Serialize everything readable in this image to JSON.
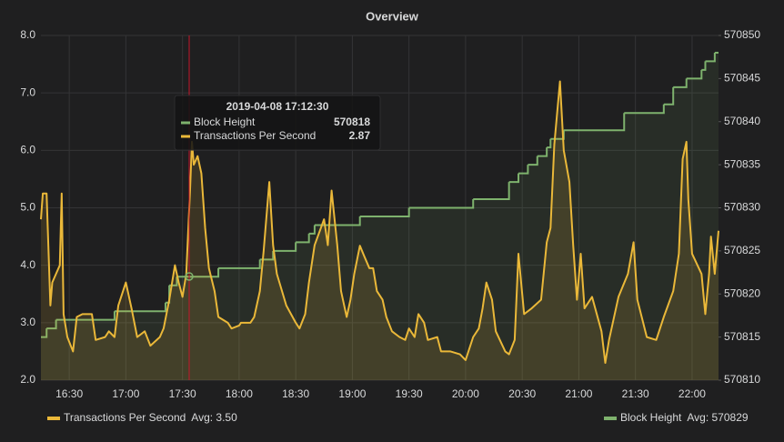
{
  "chart_data": {
    "type": "line",
    "title": "Overview",
    "xlim": [
      "16:15",
      "22:14"
    ],
    "xticks": [
      "16:30",
      "17:00",
      "17:30",
      "18:00",
      "18:30",
      "19:00",
      "19:30",
      "20:00",
      "20:30",
      "21:00",
      "21:30",
      "22:00"
    ],
    "ylim": [
      2,
      8
    ],
    "yticks": [
      {
        "value": 2,
        "label": "2.0"
      },
      {
        "value": 3,
        "label": "3.0"
      },
      {
        "value": 4,
        "label": "4.0"
      },
      {
        "value": 5,
        "label": "5.0"
      },
      {
        "value": 6,
        "label": "6.0"
      },
      {
        "value": 7,
        "label": "7.0"
      },
      {
        "value": 8,
        "label": "8.0"
      }
    ],
    "y2lim": [
      570810,
      570850
    ],
    "y2ticks": [
      570810,
      570815,
      570820,
      570825,
      570830,
      570835,
      570840,
      570845,
      570850
    ],
    "grid": true,
    "series": [
      {
        "name": "Transactions Per Second",
        "color": "#eab839",
        "legend_value": "Avg: 3.50",
        "x": [
          "16:15",
          "16:16",
          "16:18",
          "16:20",
          "16:21",
          "16:23",
          "16:25",
          "16:26",
          "16:27",
          "16:29",
          "16:32",
          "16:34",
          "16:37",
          "16:42",
          "16:44",
          "16:49",
          "16:51",
          "16:54",
          "16:56",
          "17:00",
          "17:03",
          "17:06",
          "17:10",
          "17:13",
          "17:18",
          "17:20",
          "17:23",
          "17:26",
          "17:28",
          "17:30",
          "17:32",
          "17:34",
          "17:35",
          "17:36",
          "17:38",
          "17:40",
          "17:42",
          "17:44",
          "17:47",
          "17:49",
          "17:54",
          "17:56",
          "18:00",
          "18:01",
          "18:06",
          "18:08",
          "18:11",
          "18:13",
          "18:16",
          "18:18",
          "18:20",
          "18:25",
          "18:30",
          "18:32",
          "18:35",
          "18:37",
          "18:40",
          "18:45",
          "18:47",
          "18:49",
          "18:52",
          "18:54",
          "18:57",
          "18:59",
          "19:01",
          "19:04",
          "19:06",
          "19:09",
          "19:11",
          "19:13",
          "19:16",
          "19:18",
          "19:21",
          "19:25",
          "19:28",
          "19:30",
          "19:33",
          "19:35",
          "19:38",
          "19:40",
          "19:45",
          "19:47",
          "19:52",
          "19:57",
          "20:00",
          "20:04",
          "20:07",
          "20:09",
          "20:11",
          "20:14",
          "20:16",
          "20:21",
          "20:23",
          "20:26",
          "20:28",
          "20:31",
          "20:35",
          "20:40",
          "20:43",
          "20:45",
          "20:47",
          "20:50",
          "20:52",
          "20:55",
          "20:57",
          "20:59",
          "21:01",
          "21:03",
          "21:07",
          "21:12",
          "21:14",
          "21:16",
          "21:21",
          "21:26",
          "21:29",
          "21:31",
          "21:36",
          "21:41",
          "21:45",
          "21:50",
          "21:53",
          "21:55",
          "21:57",
          "21:58",
          "22:00",
          "22:05",
          "22:07",
          "22:09",
          "22:10",
          "22:12",
          "22:14"
        ],
        "values": [
          4.8,
          5.25,
          5.25,
          3.3,
          3.7,
          3.85,
          4.0,
          5.25,
          3.15,
          2.75,
          2.5,
          3.1,
          3.15,
          3.15,
          2.7,
          2.75,
          2.85,
          2.75,
          3.3,
          3.7,
          3.25,
          2.75,
          2.85,
          2.6,
          2.75,
          2.9,
          3.4,
          4.0,
          3.7,
          3.45,
          3.85,
          5.3,
          6.15,
          5.75,
          5.9,
          5.6,
          4.65,
          3.95,
          3.55,
          3.1,
          3.0,
          2.9,
          2.95,
          3.0,
          3.0,
          3.1,
          3.55,
          4.25,
          5.45,
          4.35,
          3.85,
          3.3,
          3.0,
          2.9,
          3.15,
          3.7,
          4.35,
          4.8,
          4.35,
          5.3,
          4.35,
          3.55,
          3.1,
          3.4,
          3.85,
          4.34,
          4.18,
          3.95,
          3.95,
          3.55,
          3.4,
          3.1,
          2.85,
          2.75,
          2.7,
          2.9,
          2.75,
          3.15,
          3.0,
          2.7,
          2.75,
          2.5,
          2.5,
          2.45,
          2.35,
          2.75,
          2.9,
          3.25,
          3.7,
          3.4,
          2.85,
          2.5,
          2.45,
          2.7,
          4.2,
          3.15,
          3.25,
          3.4,
          4.4,
          4.65,
          6.1,
          7.2,
          6.0,
          5.45,
          4.35,
          3.4,
          4.2,
          3.25,
          3.45,
          2.85,
          2.3,
          2.7,
          3.45,
          3.85,
          4.4,
          3.4,
          2.75,
          2.7,
          3.1,
          3.55,
          4.2,
          5.85,
          6.15,
          5.15,
          4.2,
          3.85,
          3.15,
          3.85,
          4.5,
          3.85,
          4.6
        ]
      },
      {
        "name": "Block Height",
        "color": "#7eb26d",
        "axis": "y2",
        "legend_value": "Avg: 570829",
        "x": [
          "16:15",
          "16:18",
          "16:23",
          "16:54",
          "17:21",
          "17:23",
          "17:27",
          "17:49",
          "18:11",
          "18:18",
          "18:30",
          "18:37",
          "18:40",
          "19:04",
          "19:30",
          "20:04",
          "20:23",
          "20:28",
          "20:33",
          "20:38",
          "20:43",
          "20:45",
          "20:52",
          "21:24",
          "21:45",
          "21:50",
          "21:57",
          "22:05",
          "22:07",
          "22:12",
          "22:14"
        ],
        "values": [
          570815,
          570816,
          570817,
          570818,
          570819,
          570821,
          570822,
          570823,
          570824,
          570825,
          570826,
          570827,
          570828,
          570829,
          570830,
          570831,
          570833,
          570834,
          570835,
          570836,
          570837,
          570838,
          570839,
          570841,
          570842,
          570844,
          570845,
          570846,
          570847,
          570848,
          570848
        ]
      }
    ],
    "tooltip": {
      "time": "2019-04-08 17:12:30",
      "rows": [
        {
          "name": "Block Height",
          "value": 570818
        },
        {
          "name": "Transactions Per Second",
          "value": 2.87
        }
      ]
    }
  }
}
